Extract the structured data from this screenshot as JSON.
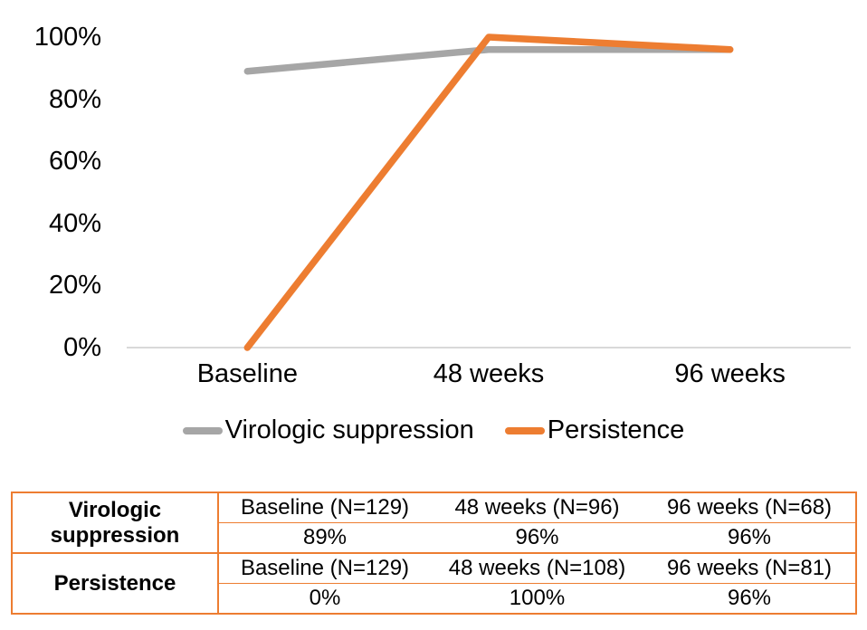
{
  "colors": {
    "virologic_suppression": "#A6A6A6",
    "persistence": "#ED7D31",
    "axis_line": "#D9D9D9",
    "table_border": "#ED7D31",
    "text": "#000000"
  },
  "chart_data": {
    "type": "line",
    "title": "",
    "xlabel": "",
    "ylabel": "",
    "grid": false,
    "legend_position": "bottom",
    "categories": [
      "Baseline",
      "48 weeks",
      "96 weeks"
    ],
    "series": [
      {
        "name": "Virologic suppression",
        "values": [
          89,
          96,
          96
        ],
        "color": "#A6A6A6"
      },
      {
        "name": "Persistence",
        "values": [
          0,
          100,
          96
        ],
        "color": "#ED7D31"
      }
    ],
    "ylim": [
      0,
      100
    ],
    "yticks": [
      {
        "value": 0,
        "label": "0%"
      },
      {
        "value": 20,
        "label": "20%"
      },
      {
        "value": 40,
        "label": "40%"
      },
      {
        "value": 60,
        "label": "60%"
      },
      {
        "value": 80,
        "label": "80%"
      },
      {
        "value": 100,
        "label": "100%"
      }
    ]
  },
  "table": {
    "groups": [
      {
        "header": "Virologic suppression",
        "columns": [
          "Baseline (N=129)",
          "48 weeks (N=96)",
          "96 weeks (N=68)"
        ],
        "values": [
          "89%",
          "96%",
          "96%"
        ]
      },
      {
        "header": "Persistence",
        "columns": [
          "Baseline (N=129)",
          "48 weeks (N=108)",
          "96 weeks (N=81)"
        ],
        "values": [
          "0%",
          "100%",
          "96%"
        ]
      }
    ]
  }
}
